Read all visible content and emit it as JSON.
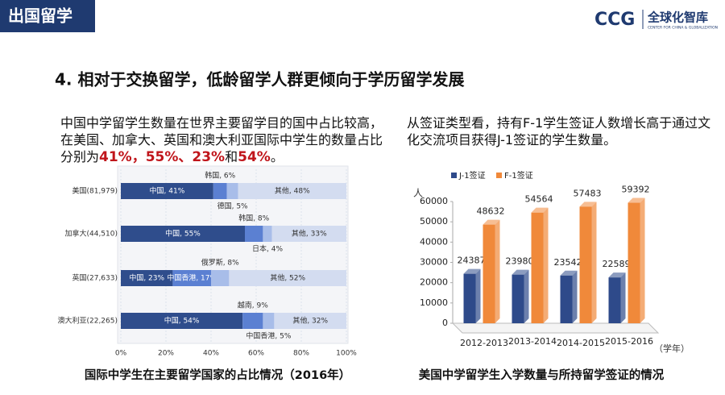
{
  "header": {
    "section": "出国留学",
    "logo_mark": "CCG",
    "logo_name": "全球化智库",
    "logo_subtitle": "CENTER FOR CHINA & GLOBALIZATION"
  },
  "title": "4. 相对于交换留学，低龄留学人群更倾向于学历留学发展",
  "left_text": [
    {
      "text": "中国中学留学生数量在世界主要留学目的国中占比较高，在美国、加拿大、英国和澳大利亚国际中学生的数量占比分别为",
      "highlight": false
    },
    {
      "text": "41%，55%、23%",
      "highlight": true
    },
    {
      "text": "和",
      "highlight": false
    },
    {
      "text": "54%",
      "highlight": true
    },
    {
      "text": "。",
      "highlight": false
    }
  ],
  "right_text": "从签证类型看，持有F-1学生签证人数增长高于通过文化交流项目获得J-1签证的学生数量。",
  "chart_data": [
    {
      "type": "bar",
      "orientation": "horizontal",
      "stacked": true,
      "title": "国际中学生在主要留学国家的占比情况（2016年）",
      "categories": [
        "美国(81,979)",
        "加拿大(44,510)",
        "英国(27,633)",
        "澳大利亚(22,265)"
      ],
      "series": [
        {
          "color": "#2f4d8c",
          "values": [
            41,
            55,
            23,
            54
          ],
          "value_labels": [
            "中国, 41%",
            "中国, 55%",
            "中国, 23%",
            "中国, 54%"
          ],
          "label_positions": [
            "inside",
            "inside",
            "inside",
            "inside"
          ]
        },
        {
          "color": "#5b80d2",
          "values": [
            6,
            8,
            17,
            9
          ],
          "value_labels": [
            "韩国, 6%",
            "韩国, 8%",
            "中国香港, 17%",
            "越南, 9%"
          ],
          "label_positions": [
            "above",
            "above",
            "inside",
            "above"
          ]
        },
        {
          "color": "#a8bde9",
          "values": [
            5,
            4,
            8,
            5
          ],
          "value_labels": [
            "德国, 5%",
            "日本, 4%",
            "俄罗斯, 8%",
            "中国香港, 5%"
          ],
          "label_positions": [
            "below",
            "below",
            "above",
            "below"
          ]
        },
        {
          "color": "#d3dcf0",
          "values": [
            48,
            33,
            52,
            32
          ],
          "value_labels": [
            "其他, 48%",
            "其他, 33%",
            "其他, 52%",
            "其他, 32%"
          ],
          "label_positions": [
            "inside",
            "inside",
            "inside",
            "inside"
          ]
        }
      ],
      "xlim": [
        0,
        100
      ],
      "xticks": [
        {
          "value": 0,
          "label": "0%"
        },
        {
          "value": 20,
          "label": "20%"
        },
        {
          "value": 40,
          "label": "40%"
        },
        {
          "value": 60,
          "label": "60%"
        },
        {
          "value": 80,
          "label": "80%"
        },
        {
          "value": 100,
          "label": "100%"
        }
      ]
    },
    {
      "type": "bar",
      "orientation": "vertical",
      "stacked": false,
      "title": "美国中学留学生入学数量与所持留学签证的情况",
      "y_label": "人",
      "x_label": "（学年）",
      "categories": [
        "2012-2013",
        "2013-2014",
        "2014-2015",
        "2015-2016"
      ],
      "series": [
        {
          "name": "J-1签证",
          "color": "#2e4a8a",
          "values": [
            24387,
            23980,
            23542,
            22589
          ]
        },
        {
          "name": "F-1签证",
          "color": "#f0893a",
          "values": [
            48632,
            54564,
            57483,
            59392
          ]
        }
      ],
      "ylim": [
        0,
        60000
      ],
      "yticks": [
        0,
        10000,
        20000,
        30000,
        40000,
        50000,
        60000
      ],
      "legend": "top"
    }
  ]
}
